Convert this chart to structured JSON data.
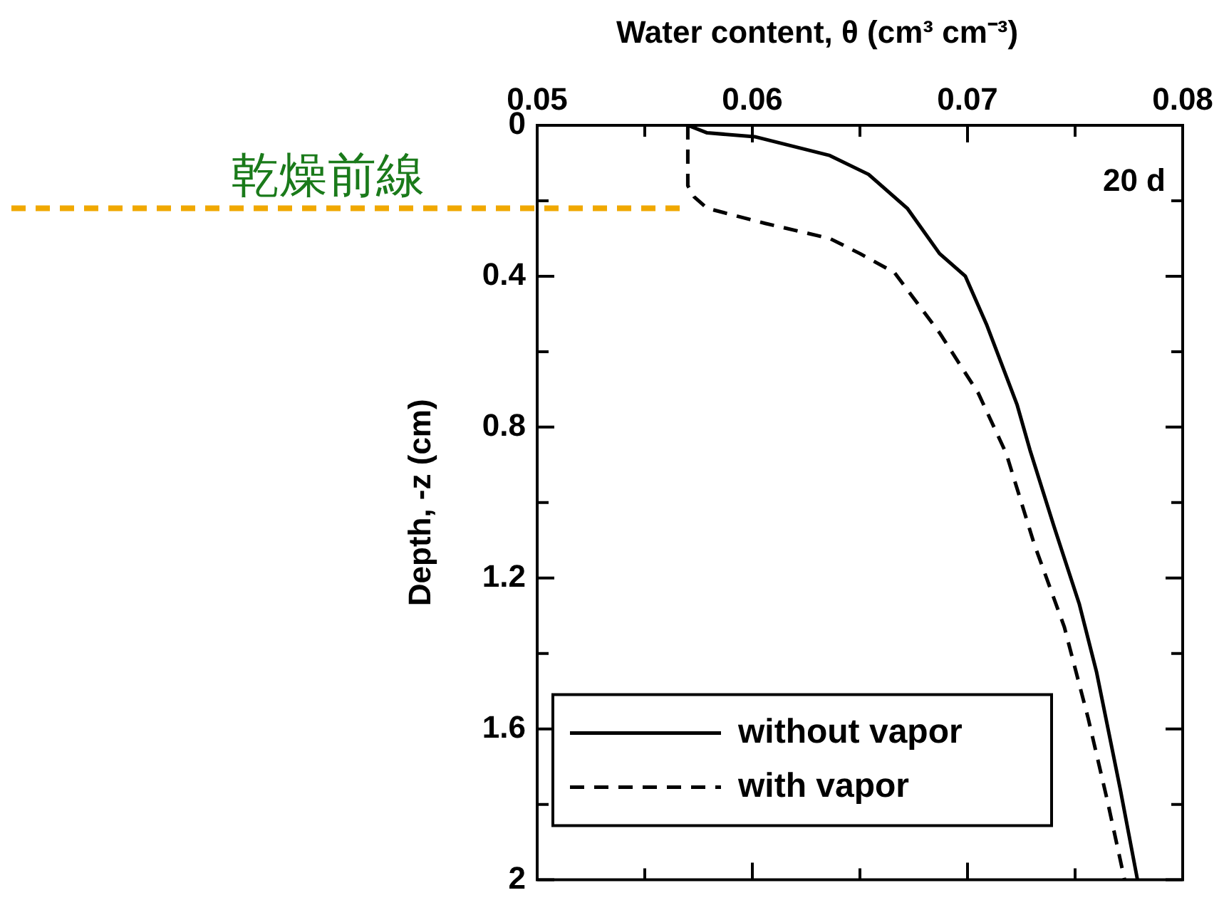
{
  "chart_data": {
    "type": "line",
    "xlabel": "Water content, θ (cm³ cm⁻³)",
    "ylabel": "Depth, -z (cm)",
    "xlim": [
      0.05,
      0.08
    ],
    "xticks": [
      0.05,
      {
        "value": 0.055,
        "label": null
      },
      0.06,
      {
        "value": 0.065,
        "label": null
      },
      0.07,
      {
        "value": 0.075,
        "label": null
      },
      0.08
    ],
    "ylim": [
      2,
      0
    ],
    "yticks": [
      0,
      {
        "value": 0.2,
        "label": null
      },
      0.4,
      {
        "value": 0.6,
        "label": null
      },
      0.8,
      {
        "value": 1.0,
        "label": null
      },
      1.2,
      {
        "value": 1.4,
        "label": null
      },
      1.6,
      {
        "value": 1.8,
        "label": null
      },
      2
    ],
    "grid": false,
    "legend": "bottom left",
    "marker": "none",
    "series": [
      {
        "name": "without vapor",
        "color": "#000000",
        "line_style": "solid",
        "x": [
          0.057,
          0.0579,
          0.0601,
          0.0636,
          0.0654,
          0.0672,
          0.0687,
          0.0699,
          0.0709,
          0.0723,
          0.0729,
          0.074,
          0.0752,
          0.076,
          0.0771,
          0.0779
        ],
        "values": [
          0,
          0.02,
          0.03,
          0.08,
          0.13,
          0.22,
          0.34,
          0.4,
          0.53,
          0.74,
          0.86,
          1.06,
          1.27,
          1.45,
          1.76,
          2.0
        ]
      },
      {
        "name": "with vapor",
        "color": "#000000",
        "line_style": "dashed",
        "x": [
          0.057,
          0.057,
          0.0573,
          0.0579,
          0.0606,
          0.0636,
          0.065,
          0.0666,
          0.0687,
          0.0705,
          0.0718,
          0.0731,
          0.0745,
          0.0756,
          0.0765,
          0.0773
        ],
        "values": [
          0,
          0.16,
          0.19,
          0.22,
          0.26,
          0.3,
          0.34,
          0.39,
          0.55,
          0.71,
          0.87,
          1.11,
          1.33,
          1.57,
          1.79,
          2.0
        ]
      }
    ],
    "ref_lines": [
      {
        "axis": "y",
        "value": 0.22,
        "label": "乾燥前線",
        "color": "#f0a800",
        "line_style": "dashed"
      }
    ],
    "annotations": [
      "20 d"
    ]
  }
}
